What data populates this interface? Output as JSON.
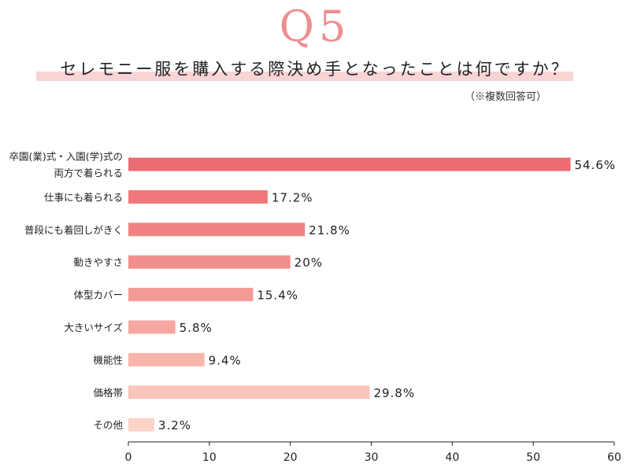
{
  "header": {
    "question": "Q5",
    "title": "セレモニー服を購入する際決め手となったことは何ですか？",
    "note": "（※複数回答可）"
  },
  "chart_data": {
    "type": "bar",
    "orientation": "horizontal",
    "categories": [
      "卒園(業)式・入園(学)式の|両方で着られる",
      "仕事にも着られる",
      "普段にも着回しがきく",
      "動きやすさ",
      "体型カバー",
      "大きいサイズ",
      "機能性",
      "価格帯",
      "その他"
    ],
    "values": [
      54.6,
      17.2,
      21.8,
      20,
      15.4,
      5.8,
      9.4,
      29.8,
      3.2
    ],
    "value_labels": [
      "54.6%",
      "17.2%",
      "21.8%",
      "20%",
      "15.4%",
      "5.8%",
      "9.4%",
      "29.8%",
      "3.2%"
    ],
    "xlim": [
      0,
      60
    ],
    "xticks": [
      "0",
      "10",
      "20",
      "30",
      "40",
      "50",
      "60"
    ],
    "grid": false,
    "colors": [
      "#ec6b74",
      "#ef777c",
      "#f08283",
      "#f28e8c",
      "#f49a95",
      "#f6a7a0",
      "#f8b5ac",
      "#f9c4b9",
      "#fbd3c9"
    ]
  }
}
